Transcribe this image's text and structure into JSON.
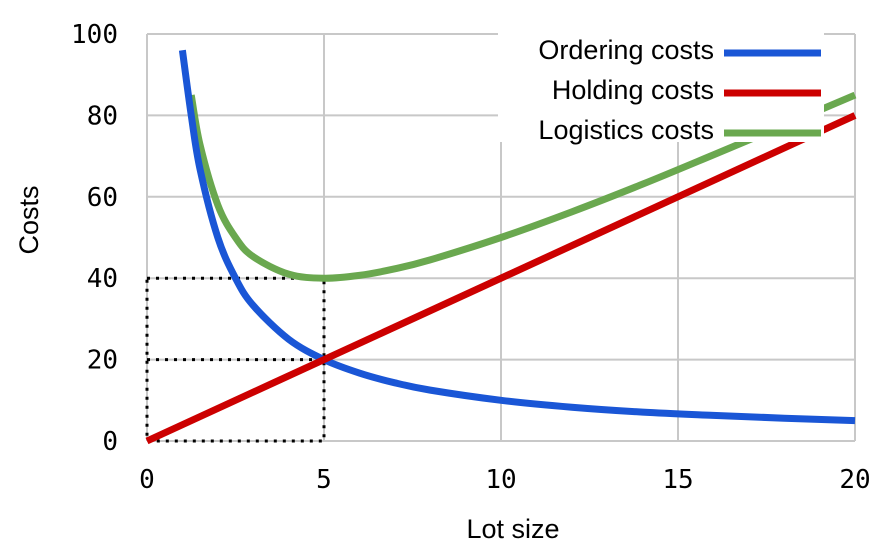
{
  "chart_data": {
    "type": "line",
    "xlabel": "Lot size",
    "ylabel": "Costs",
    "xlim": [
      0,
      20
    ],
    "ylim": [
      0,
      100
    ],
    "xticks": [
      0,
      5,
      10,
      15,
      20
    ],
    "yticks": [
      0,
      20,
      40,
      60,
      80,
      100
    ],
    "grid": true,
    "legend": "top-right",
    "series": [
      {
        "name": "Ordering costs",
        "color": "#1a56d6",
        "x": [
          1.0,
          1.25,
          1.5,
          2.0,
          2.5,
          3.0,
          4.0,
          5.0,
          6.0,
          7.0,
          8.0,
          10.0,
          12.0,
          14.0,
          16.0,
          18.0,
          20.0
        ],
        "y": [
          96,
          80,
          66.7,
          50,
          40,
          33.3,
          25,
          20,
          16.7,
          14.3,
          12.5,
          10,
          8.3,
          7.1,
          6.3,
          5.6,
          5
        ]
      },
      {
        "name": "Holding costs",
        "color": "#cc0000",
        "x": [
          0,
          20
        ],
        "y": [
          0,
          80
        ]
      },
      {
        "name": "Logistics costs",
        "color": "#6aa84f",
        "x": [
          1.25,
          1.5,
          2.0,
          2.5,
          3.0,
          4.0,
          5.0,
          6.0,
          7.0,
          8.0,
          10.0,
          12.0,
          14.0,
          16.0,
          18.0,
          20.0
        ],
        "y": [
          85,
          72.7,
          58,
          50,
          45.3,
          41,
          40,
          40.7,
          42.3,
          44.5,
          50,
          56.3,
          63.1,
          70.3,
          77.6,
          85
        ]
      }
    ],
    "guides": [
      {
        "x": [
          0,
          5,
          5,
          0,
          0
        ],
        "y": [
          40,
          40,
          0,
          0,
          40
        ]
      },
      {
        "x": [
          0,
          5
        ],
        "y": [
          20,
          20
        ]
      }
    ]
  }
}
